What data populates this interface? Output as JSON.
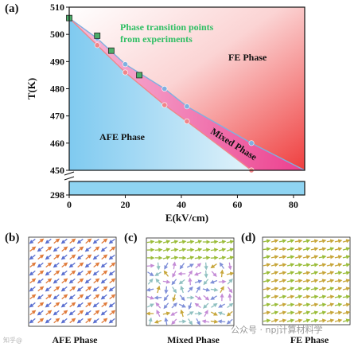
{
  "panels": {
    "a": "(a)",
    "b": "(b)",
    "c": "(c)",
    "d": "(d)"
  },
  "chart_data": {
    "type": "line",
    "xlabel": "E(kV/cm)",
    "ylabel": "T(K)",
    "xlim": [
      0,
      84
    ],
    "ylim_upper": [
      450,
      510
    ],
    "ylim_lower_tick": 298,
    "x_ticks": [
      0,
      20,
      40,
      60,
      80
    ],
    "y_ticks": [
      450,
      460,
      470,
      480,
      490,
      500,
      510
    ],
    "y_ticks_lower": [
      298
    ],
    "annotation": "Phase transition points\nfrom experiments",
    "regions": {
      "fe": "FE Phase",
      "afe": "AFE Phase",
      "mixed": "Mixed Phase"
    },
    "series": [
      {
        "role": "upper boundary (blue circles)",
        "x": [
          0,
          10,
          20,
          34,
          42,
          65,
          84
        ],
        "y": [
          506,
          498.5,
          489,
          480,
          473.5,
          460,
          450
        ],
        "color": "#7fb0e0"
      },
      {
        "role": "lower boundary (red circles)",
        "x": [
          0,
          10,
          20,
          34,
          42,
          65
        ],
        "y": [
          506,
          496,
          486,
          474,
          468,
          450
        ],
        "color": "#f0868a"
      },
      {
        "role": "experimental transition points (green squares)",
        "x": [
          0,
          10,
          15,
          25
        ],
        "y": [
          506,
          499.5,
          494,
          485
        ],
        "color": "#4caf6a"
      }
    ],
    "colors": {
      "fe_region": "#f04a4a",
      "afe_region": "#8fd0f0",
      "mixed_region": "#ee4f9e",
      "annotation_text": "#2fbf64",
      "lower_band": "#8fd4f2"
    }
  },
  "subpanels": [
    {
      "id": "b",
      "caption": "AFE Phase",
      "pattern": "afe"
    },
    {
      "id": "c",
      "caption": "Mixed Phase",
      "pattern": "mixed"
    },
    {
      "id": "d",
      "caption": "FE Phase",
      "pattern": "fe"
    }
  ],
  "watermark": {
    "text": "公众号 · npj计算材料学",
    "corner": "知乎@"
  }
}
